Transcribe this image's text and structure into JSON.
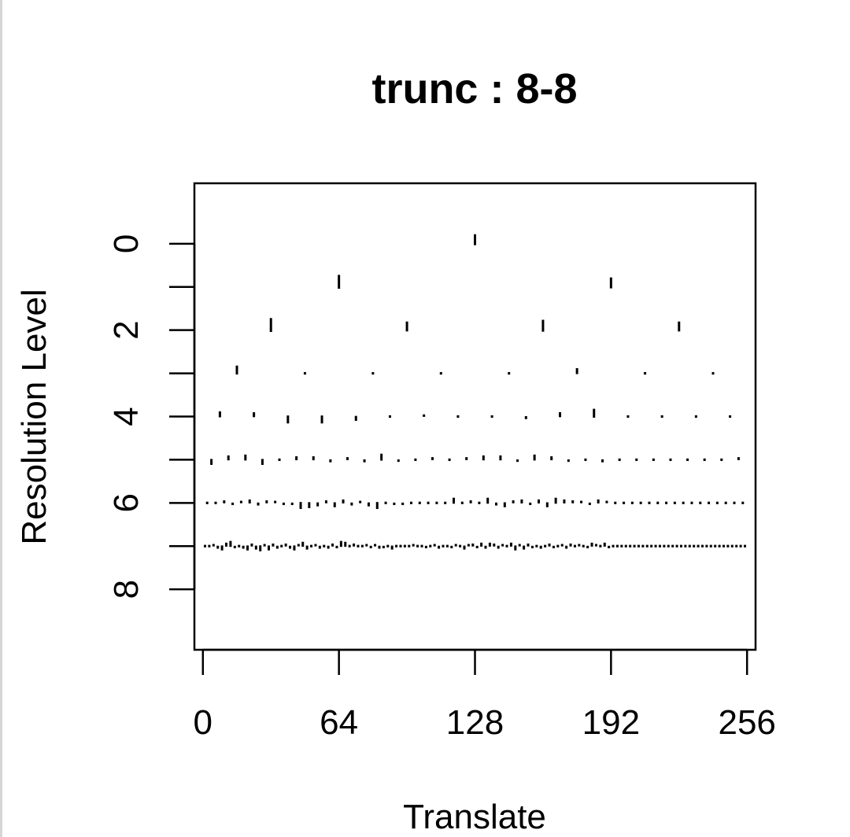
{
  "chart_data": {
    "type": "scatter",
    "title": "trunc : 8-8",
    "xlabel": "Translate",
    "ylabel": "Resolution Level",
    "xlim": [
      -4,
      260
    ],
    "ylim": [
      9.4,
      -1.4
    ],
    "y_reversed": true,
    "x_ticks": [
      0,
      64,
      128,
      192,
      256
    ],
    "y_ticks": [
      0,
      2,
      4,
      6,
      8
    ],
    "y_minor_ticks": [
      1,
      3,
      5,
      7
    ],
    "grid": false,
    "legend": "none",
    "series": [
      {
        "level": 0,
        "x": [
          128
        ],
        "magnitude": [
          0.22
        ]
      },
      {
        "level": 1,
        "x": [
          64,
          192
        ],
        "magnitude": [
          0.28,
          0.22
        ]
      },
      {
        "level": 2,
        "x": [
          32,
          96,
          160,
          224
        ],
        "magnitude": [
          0.28,
          0.2,
          0.24,
          0.2
        ]
      },
      {
        "level": 3,
        "x": [
          16,
          48,
          80,
          112,
          144,
          176,
          208,
          240
        ],
        "magnitude": [
          0.18,
          0.04,
          0.04,
          0.04,
          0.04,
          0.12,
          0.04,
          0.04
        ]
      },
      {
        "level": 4,
        "x": [
          8,
          24,
          40,
          56,
          72,
          88,
          104,
          120,
          136,
          152,
          168,
          184,
          200,
          216,
          232,
          248
        ],
        "magnitude": [
          0.12,
          0.1,
          -0.16,
          -0.16,
          -0.1,
          0.04,
          0.05,
          0.04,
          0.04,
          -0.06,
          0.1,
          0.18,
          0.04,
          0.04,
          0.04,
          0.04
        ]
      },
      {
        "level": 5,
        "x": [
          4,
          12,
          20,
          28,
          36,
          44,
          52,
          60,
          68,
          76,
          84,
          92,
          100,
          108,
          116,
          124,
          132,
          140,
          148,
          156,
          164,
          172,
          180,
          188,
          196,
          204,
          212,
          220,
          228,
          236,
          244,
          252
        ],
        "magnitude": [
          -0.12,
          0.1,
          0.12,
          -0.12,
          0.04,
          0.08,
          0.08,
          -0.06,
          0.06,
          -0.06,
          0.14,
          -0.05,
          0.04,
          0.06,
          0.04,
          0.06,
          0.1,
          0.1,
          -0.05,
          0.12,
          0.08,
          -0.05,
          0.04,
          -0.06,
          0.04,
          0.04,
          0.04,
          0.04,
          0.04,
          0.04,
          0.04,
          0.06
        ]
      },
      {
        "level": 6,
        "x": [
          2,
          6,
          10,
          14,
          18,
          22,
          26,
          30,
          34,
          38,
          42,
          46,
          50,
          54,
          58,
          62,
          66,
          70,
          74,
          78,
          82,
          86,
          90,
          94,
          98,
          102,
          106,
          110,
          114,
          118,
          122,
          126,
          130,
          134,
          138,
          142,
          146,
          150,
          154,
          158,
          162,
          166,
          170,
          174,
          178,
          182,
          186,
          190,
          194,
          198,
          202,
          206,
          210,
          214,
          218,
          222,
          226,
          230,
          234,
          238,
          242,
          246,
          250,
          254
        ],
        "magnitude": [
          0.03,
          0.03,
          0.06,
          -0.05,
          0.05,
          0.08,
          -0.06,
          0.06,
          0.05,
          -0.05,
          -0.05,
          -0.14,
          -0.12,
          -0.08,
          0.06,
          -0.1,
          0.08,
          -0.06,
          0.05,
          -0.08,
          -0.14,
          0.04,
          -0.05,
          -0.05,
          -0.03,
          0.03,
          -0.04,
          -0.03,
          0.03,
          0.12,
          -0.04,
          0.06,
          -0.03,
          0.12,
          -0.06,
          -0.1,
          0.06,
          0.08,
          -0.05,
          0.08,
          -0.1,
          0.12,
          0.08,
          0.06,
          0.05,
          -0.05,
          0.08,
          0.05,
          0.03,
          0.03,
          0.03,
          0.03,
          0.03,
          0.03,
          0.03,
          0.03,
          0.03,
          0.03,
          0.03,
          0.03,
          0.03,
          0.03,
          0.03,
          0.03
        ]
      },
      {
        "level": 7,
        "x": [
          1,
          3,
          5,
          7,
          9,
          11,
          13,
          15,
          17,
          19,
          21,
          23,
          25,
          27,
          29,
          31,
          33,
          35,
          37,
          39,
          41,
          43,
          45,
          47,
          49,
          51,
          53,
          55,
          57,
          59,
          61,
          63,
          65,
          67,
          69,
          71,
          73,
          75,
          77,
          79,
          81,
          83,
          85,
          87,
          89,
          91,
          93,
          95,
          97,
          99,
          101,
          103,
          105,
          107,
          109,
          111,
          113,
          115,
          117,
          119,
          121,
          123,
          125,
          127,
          129,
          131,
          133,
          135,
          137,
          139,
          141,
          143,
          145,
          147,
          149,
          151,
          153,
          155,
          157,
          159,
          161,
          163,
          165,
          167,
          169,
          171,
          173,
          175,
          177,
          179,
          181,
          183,
          185,
          187,
          189,
          191,
          193,
          195,
          197,
          199,
          201,
          203,
          205,
          207,
          209,
          211,
          213,
          215,
          217,
          219,
          221,
          223,
          225,
          227,
          229,
          231,
          233,
          235,
          237,
          239,
          241,
          243,
          245,
          247,
          249,
          251,
          253,
          255
        ],
        "magnitude": [
          0.02,
          0.02,
          0.05,
          -0.06,
          -0.1,
          0.08,
          0.12,
          -0.05,
          0.04,
          -0.06,
          -0.1,
          0.06,
          -0.08,
          -0.12,
          0.05,
          -0.1,
          0.06,
          -0.06,
          0.04,
          0.06,
          -0.06,
          -0.1,
          0.05,
          0.1,
          -0.08,
          0.04,
          0.05,
          -0.06,
          0.04,
          -0.06,
          0.06,
          -0.05,
          0.12,
          0.1,
          -0.04,
          0.06,
          0.04,
          -0.04,
          0.05,
          -0.05,
          0.05,
          -0.06,
          -0.05,
          0.04,
          -0.08,
          0.04,
          -0.04,
          0.04,
          -0.04,
          0.05,
          -0.04,
          0.04,
          -0.05,
          0.04,
          0.05,
          -0.06,
          0.04,
          0.04,
          -0.05,
          0.05,
          0.04,
          -0.08,
          0.05,
          0.06,
          -0.05,
          0.08,
          -0.06,
          0.08,
          0.06,
          -0.06,
          0.05,
          0.04,
          0.08,
          -0.1,
          0.05,
          -0.08,
          0.06,
          -0.05,
          0.04,
          -0.06,
          0.04,
          0.06,
          -0.05,
          0.04,
          0.05,
          -0.06,
          0.06,
          0.04,
          0.05,
          0.04,
          -0.05,
          0.08,
          0.05,
          -0.04,
          0.08,
          -0.05,
          0.02,
          0.02,
          0.02,
          0.02,
          0.02,
          0.02,
          0.02,
          0.02,
          0.02,
          0.02,
          0.02,
          0.02,
          0.02,
          0.02,
          0.02,
          0.02,
          0.02,
          0.02,
          0.02,
          0.02,
          0.02,
          0.02,
          0.02,
          0.02,
          0.02,
          0.02,
          0.02,
          0.02,
          0.02,
          0.02,
          0.02,
          0.02
        ]
      }
    ]
  }
}
